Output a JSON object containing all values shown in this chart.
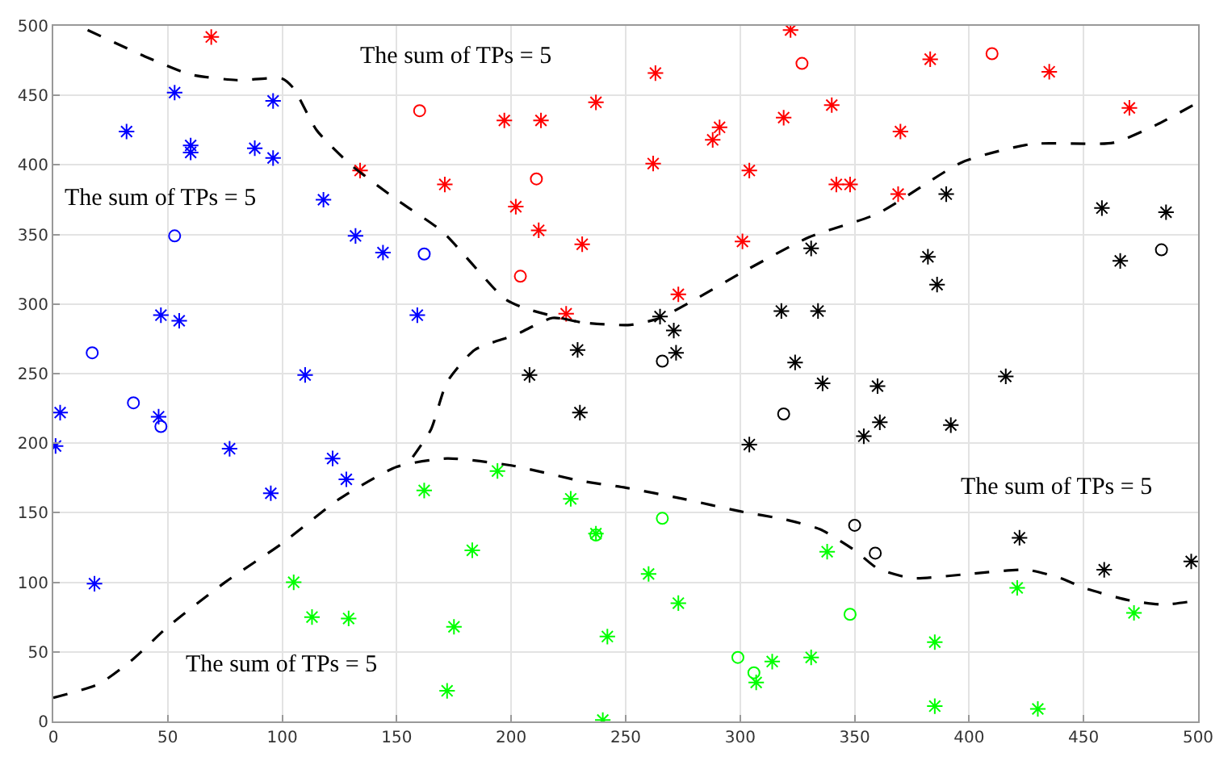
{
  "chart_data": {
    "type": "scatter",
    "xlim": [
      0,
      500
    ],
    "ylim": [
      0,
      500
    ],
    "xticks": [
      0,
      50,
      100,
      150,
      200,
      250,
      300,
      350,
      400,
      450,
      500
    ],
    "yticks": [
      0,
      50,
      100,
      150,
      200,
      250,
      300,
      350,
      400,
      450,
      500
    ],
    "grid": true,
    "series": [
      {
        "marker": "cross",
        "color": "#0000ff",
        "x": [
          3,
          1,
          18,
          46,
          77,
          95,
          110,
          122,
          128,
          47,
          55,
          53,
          60,
          60,
          32,
          88,
          96,
          96,
          118,
          132,
          144,
          159
        ],
        "values": [
          222,
          198,
          99,
          219,
          196,
          164,
          249,
          189,
          174,
          292,
          288,
          452,
          414,
          409,
          424,
          412,
          446,
          405,
          375,
          349,
          337,
          292
        ]
      },
      {
        "marker": "circle",
        "color": "#0000ff",
        "x": [
          17,
          35,
          47,
          53,
          162
        ],
        "values": [
          265,
          229,
          212,
          349,
          336
        ]
      },
      {
        "marker": "cross",
        "color": "#ff0000",
        "x": [
          69,
          134,
          171,
          197,
          213,
          237,
          202,
          212,
          231,
          224,
          263,
          262,
          288,
          291,
          319,
          322,
          304,
          340,
          342,
          348,
          370,
          369,
          383,
          435,
          470,
          301,
          273
        ],
        "values": [
          492,
          396,
          386,
          432,
          432,
          445,
          370,
          353,
          343,
          293,
          466,
          401,
          418,
          427,
          434,
          497,
          396,
          443,
          386,
          386,
          424,
          379,
          476,
          467,
          441,
          345,
          307
        ]
      },
      {
        "marker": "circle",
        "color": "#ff0000",
        "x": [
          160,
          211,
          204,
          327,
          410
        ],
        "values": [
          439,
          390,
          320,
          473,
          480
        ]
      },
      {
        "marker": "cross",
        "color": "#000000",
        "x": [
          208,
          230,
          229,
          265,
          271,
          272,
          318,
          334,
          324,
          331,
          382,
          386,
          390,
          458,
          466,
          486,
          336,
          360,
          361,
          392,
          354,
          304,
          416,
          422,
          459,
          497
        ],
        "values": [
          249,
          222,
          267,
          291,
          281,
          265,
          295,
          295,
          258,
          340,
          334,
          314,
          379,
          369,
          331,
          366,
          243,
          241,
          215,
          213,
          205,
          199,
          248,
          132,
          109,
          115
        ]
      },
      {
        "marker": "circle",
        "color": "#000000",
        "x": [
          266,
          484,
          319,
          350,
          359
        ],
        "values": [
          259,
          339,
          221,
          141,
          121
        ]
      },
      {
        "marker": "cross",
        "color": "#00ff00",
        "x": [
          105,
          113,
          129,
          162,
          175,
          172,
          183,
          194,
          226,
          237,
          242,
          240,
          260,
          273,
          307,
          314,
          331,
          338,
          385,
          385,
          430,
          421,
          472
        ],
        "values": [
          100,
          75,
          74,
          166,
          68,
          22,
          123,
          180,
          160,
          135,
          61,
          1,
          106,
          85,
          28,
          43,
          46,
          122,
          57,
          11,
          9,
          96,
          78
        ]
      },
      {
        "marker": "circle",
        "color": "#00ff00",
        "x": [
          237,
          266,
          348,
          299,
          306
        ],
        "values": [
          134,
          146,
          77,
          46,
          35
        ]
      },
      {
        "type": "line",
        "line_style": "dashed",
        "marker": "none",
        "color": "#000000",
        "x": [
          15,
          40,
          60,
          80,
          100,
          105,
          115,
          130,
          150,
          170,
          197,
          206,
          230,
          252,
          265,
          280,
          300,
          330,
          360,
          397,
          427,
          463,
          482,
          500
        ],
        "values": [
          497,
          478,
          465,
          461,
          462,
          455,
          425,
          400,
          375,
          352,
          304,
          297,
          287,
          285,
          290,
          303,
          322,
          348,
          365,
          402,
          415,
          416,
          429,
          445
        ]
      },
      {
        "type": "line",
        "line_style": "dashed",
        "marker": "none",
        "color": "#000000",
        "x": [
          157,
          165,
          172,
          184,
          202,
          218,
          230
        ],
        "values": [
          190,
          210,
          244,
          267,
          278,
          290,
          287
        ]
      },
      {
        "type": "line",
        "line_style": "dashed",
        "marker": "none",
        "color": "#000000",
        "x": [
          0,
          20,
          35,
          50,
          75,
          100,
          125,
          150,
          172,
          200,
          230,
          250,
          275,
          300,
          320,
          335,
          350,
          360,
          375,
          400,
          425,
          440,
          450,
          470,
          485,
          500
        ],
        "values": [
          17,
          27,
          45,
          68,
          100,
          128,
          160,
          183,
          189,
          184,
          173,
          168,
          160,
          151,
          145,
          138,
          123,
          110,
          103,
          106,
          109,
          103,
          96,
          87,
          84,
          87
        ]
      }
    ],
    "annotations": [
      "The sum of TPs = 5",
      "The sum of TPs = 5",
      "The sum of TPs = 5",
      "The sum of TPs = 5"
    ]
  }
}
